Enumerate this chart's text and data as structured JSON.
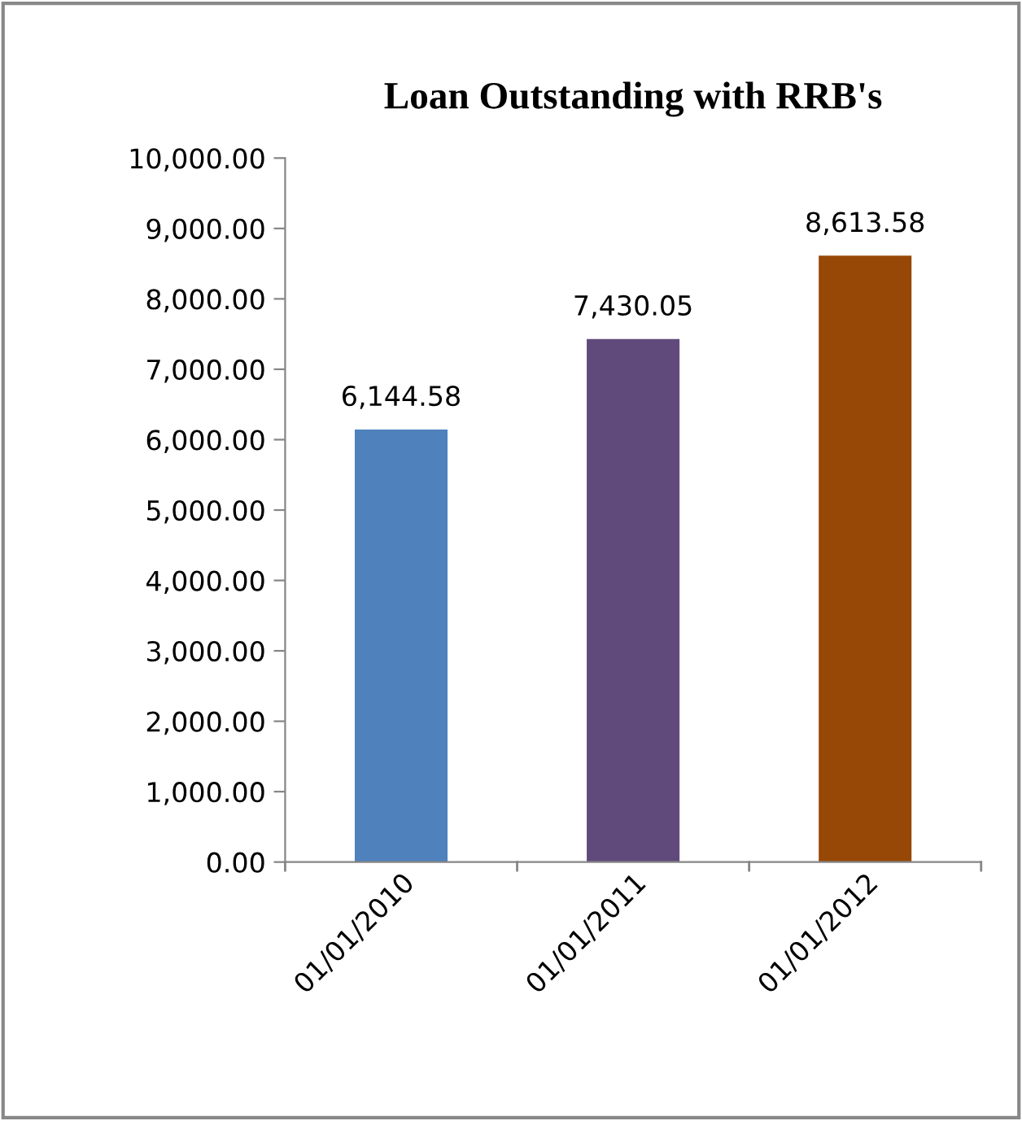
{
  "chart_data": {
    "type": "bar",
    "title": "Loan Outstanding with RRB's",
    "categories": [
      "01/01/2010",
      "01/01/2011",
      "01/01/2012"
    ],
    "values": [
      6144.58,
      7430.05,
      8613.58
    ],
    "colors": [
      "#4f81bd",
      "#604a7b",
      "#974806"
    ],
    "value_labels": [
      "6,144.58",
      "7,430.05",
      "8,613.58"
    ],
    "ylim": [
      0,
      10000
    ],
    "yticks": [
      {
        "value": 0,
        "label": "0.00"
      },
      {
        "value": 1000,
        "label": "1,000.00"
      },
      {
        "value": 2000,
        "label": "2,000.00"
      },
      {
        "value": 3000,
        "label": "3,000.00"
      },
      {
        "value": 4000,
        "label": "4,000.00"
      },
      {
        "value": 5000,
        "label": "5,000.00"
      },
      {
        "value": 6000,
        "label": "6,000.00"
      },
      {
        "value": 7000,
        "label": "7,000.00"
      },
      {
        "value": 8000,
        "label": "8,000.00"
      },
      {
        "value": 9000,
        "label": "9,000.00"
      },
      {
        "value": 10000,
        "label": "10,000.00"
      }
    ],
    "grid": false,
    "legend": false
  }
}
